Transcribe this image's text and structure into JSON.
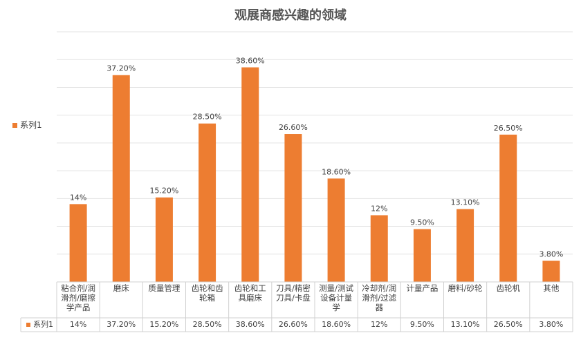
{
  "chart_data": {
    "type": "bar",
    "title": "观展商感兴趣的领域",
    "categories": [
      "粘合剂/润滑剂/磨擦学产品",
      "磨床",
      "质量管理",
      "齿轮和齿轮箱",
      "齿轮和工具磨床",
      "刀具/精密刀具/卡盘",
      "测量/测试设备计量学",
      "冷却剂/润滑剂/过滤器",
      "计量产品",
      "磨料/砂轮",
      "齿轮机",
      "其他"
    ],
    "series": [
      {
        "name": "系列1",
        "values": [
          14,
          37.2,
          15.2,
          28.5,
          38.6,
          26.6,
          18.6,
          12,
          9.5,
          13.1,
          26.5,
          3.8
        ],
        "labels": [
          "14%",
          "37.20%",
          "15.20%",
          "28.50%",
          "38.60%",
          "26.60%",
          "18.60%",
          "12%",
          "9.50%",
          "13.10%",
          "26.50%",
          "3.80%"
        ]
      }
    ],
    "ylim": [
      0,
      45
    ],
    "gridlines": true,
    "legend": "left",
    "data_table": true,
    "color": "#ED7D31"
  }
}
